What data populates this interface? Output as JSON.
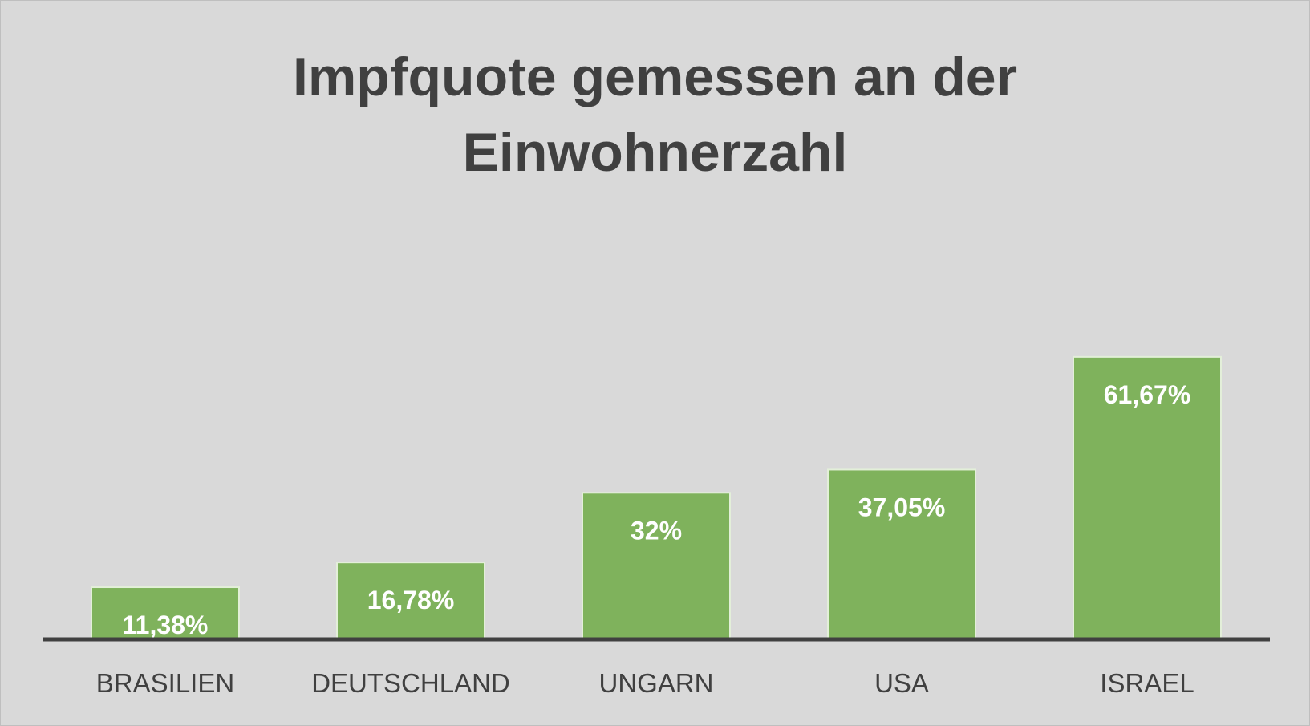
{
  "chart_data": {
    "type": "bar",
    "title_lines": [
      "Impfquote gemessen an der",
      "Einwohnerzahl"
    ],
    "xlabel": "",
    "ylabel": "",
    "categories": [
      "BRASILIEN",
      "DEUTSCHLAND",
      "UNGARN",
      "USA",
      "ISRAEL"
    ],
    "values": [
      11.38,
      16.78,
      32,
      37.05,
      61.67
    ],
    "data_labels": [
      "11,38%",
      "16,78%",
      "32%",
      "37,05%",
      "61,67%"
    ],
    "ylim": [
      0,
      100
    ],
    "grid": false,
    "legend": "none",
    "colors": {
      "bar_fill": "#7fb25c",
      "bar_border": "#e3efd9",
      "data_label": "#ffffff",
      "axis_line": "#404040",
      "category_label": "#404040",
      "title": "#404040",
      "background": "#d9d9d9"
    }
  }
}
